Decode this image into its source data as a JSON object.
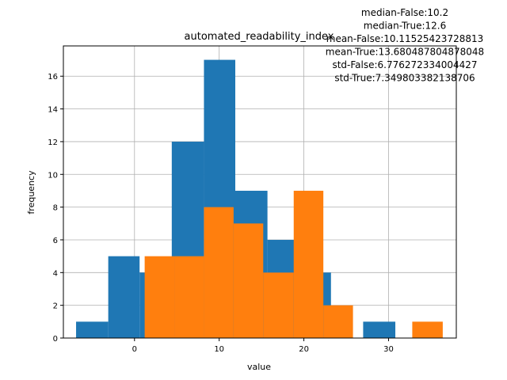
{
  "chart_data": {
    "type": "bar",
    "title": "automated_readability_index",
    "xlabel": "value",
    "ylabel": "frequency",
    "xlim": [
      -8.4,
      38.0
    ],
    "ylim": [
      0,
      17.85
    ],
    "grid": true,
    "xticks": [
      0,
      10,
      20,
      30
    ],
    "yticks": [
      0,
      2,
      4,
      6,
      8,
      10,
      12,
      14,
      16
    ],
    "colors": {
      "series_false": "#1f77b4",
      "series_true": "#ff7f0e",
      "grid": "#b0b0b0"
    },
    "series": [
      {
        "values": [
          {
            "x0": -6.9,
            "x1": -3.1,
            "y": 1
          },
          {
            "x0": -3.1,
            "x1": 0.6,
            "y": 5
          },
          {
            "x0": 0.6,
            "x1": 4.4,
            "y": 4
          },
          {
            "x0": 4.4,
            "x1": 8.2,
            "y": 12
          },
          {
            "x0": 8.2,
            "x1": 11.9,
            "y": 17
          },
          {
            "x0": 11.9,
            "x1": 15.7,
            "y": 9
          },
          {
            "x0": 15.7,
            "x1": 19.5,
            "y": 6
          },
          {
            "x0": 19.5,
            "x1": 23.2,
            "y": 4
          },
          {
            "x0": 23.2,
            "x1": 27.0,
            "y": 0
          },
          {
            "x0": 27.0,
            "x1": 30.8,
            "y": 1
          }
        ]
      },
      {
        "values": [
          {
            "x0": 1.2,
            "x1": 4.7,
            "y": 5
          },
          {
            "x0": 4.7,
            "x1": 8.2,
            "y": 5
          },
          {
            "x0": 8.2,
            "x1": 11.7,
            "y": 8
          },
          {
            "x0": 11.7,
            "x1": 15.2,
            "y": 7
          },
          {
            "x0": 15.2,
            "x1": 18.8,
            "y": 4
          },
          {
            "x0": 18.8,
            "x1": 22.3,
            "y": 9
          },
          {
            "x0": 22.3,
            "x1": 25.8,
            "y": 2
          },
          {
            "x0": 25.8,
            "x1": 29.3,
            "y": 0
          },
          {
            "x0": 29.3,
            "x1": 32.8,
            "y": 0
          },
          {
            "x0": 32.8,
            "x1": 36.4,
            "y": 1
          }
        ]
      }
    ],
    "annotations": [
      "median-False:10.2",
      "median-True:12.6",
      "mean-False:10.11525423728813",
      "mean-True:13.680487804878048",
      "std-False:6.776272334004427",
      "std-True:7.349803382138706"
    ]
  }
}
